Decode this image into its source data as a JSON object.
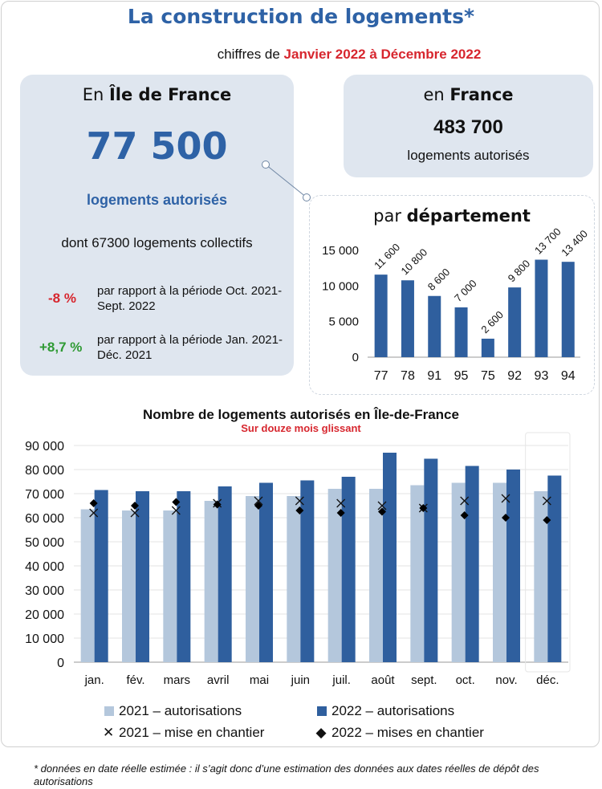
{
  "header": {
    "title": "La construction de logements*",
    "subtitle_prefix": "chiffres de ",
    "subtitle_period": "Janvier 2022 à Décembre 2022"
  },
  "idf": {
    "head_prefix": "En ",
    "head_region": "Île de France",
    "total": "77 500",
    "total_label": "logements autorisés",
    "collective": "dont 67300 logements collectifs",
    "change1_value": "-8 %",
    "change1_desc": "par rapport à la période Oct. 2021-Sept. 2022",
    "change2_value": "+8,7 %",
    "change2_desc": "par rapport à la période Jan. 2021-Déc. 2021"
  },
  "france": {
    "head_prefix": "en ",
    "head_region": "France",
    "total": "483 700",
    "total_label": "logements autorisés"
  },
  "colors": {
    "accent_blue": "#2e62a6",
    "bar_2022": "#2f5f9e",
    "bar_2021": "#b4c7dc",
    "negative": "#d7262e",
    "positive": "#2f9a34",
    "card_bg": "#dfe6ef"
  },
  "chart_data": [
    {
      "type": "bar",
      "title_prefix": "par ",
      "title_bold": "département",
      "categories": [
        "77",
        "78",
        "91",
        "95",
        "75",
        "92",
        "93",
        "94"
      ],
      "values": [
        11600,
        10800,
        8600,
        7000,
        2600,
        9800,
        13700,
        13400
      ],
      "value_labels": [
        "11 600",
        "10 800",
        "8 600",
        "7 000",
        "2 600",
        "9 800",
        "13 700",
        "13 400"
      ],
      "ylim": [
        0,
        15000
      ],
      "yticks": [
        0,
        5000,
        10000,
        15000
      ],
      "ytick_labels": [
        "0",
        "5 000",
        "10 000",
        "15 000"
      ],
      "grid": false
    },
    {
      "type": "bar",
      "title": "Nombre de logements autorisés en Île-de-France",
      "subtitle": "Sur douze mois glissant",
      "categories": [
        "jan.",
        "fév.",
        "mars",
        "avril",
        "mai",
        "juin",
        "juil.",
        "août",
        "sept.",
        "oct.",
        "nov.",
        "déc."
      ],
      "series": [
        {
          "name": "2021 – autorisations",
          "kind": "bar",
          "values": [
            63500,
            63000,
            63000,
            67000,
            69000,
            69000,
            72000,
            72000,
            73500,
            74500,
            74500,
            71000
          ]
        },
        {
          "name": "2022 – autorisations",
          "kind": "bar",
          "values": [
            71500,
            71000,
            71000,
            73000,
            74500,
            75500,
            77000,
            87000,
            84500,
            81500,
            80000,
            77500
          ]
        },
        {
          "name": "2021 – mise en chantier",
          "kind": "marker-x",
          "values": [
            62000,
            62000,
            63000,
            66000,
            67000,
            67000,
            66000,
            65000,
            64000,
            67000,
            68000,
            67000
          ]
        },
        {
          "name": "2022 – mises en chantier",
          "kind": "marker-diamond",
          "values": [
            66000,
            65000,
            66500,
            65500,
            65000,
            63000,
            62000,
            62500,
            64000,
            61000,
            60000,
            59000
          ]
        }
      ],
      "ylim": [
        0,
        90000
      ],
      "yticks": [
        0,
        10000,
        20000,
        30000,
        40000,
        50000,
        60000,
        70000,
        80000,
        90000
      ],
      "ytick_labels": [
        "0",
        "10 000",
        "20 000",
        "30 000",
        "40 000",
        "50 000",
        "60 000",
        "70 000",
        "80 000",
        "90 000"
      ],
      "grid": true,
      "legend_position": "bottom"
    }
  ],
  "footnote": "* données en date réelle estimée : il s’agit donc d’une estimation des données aux dates réelles de dépôt des autorisations"
}
